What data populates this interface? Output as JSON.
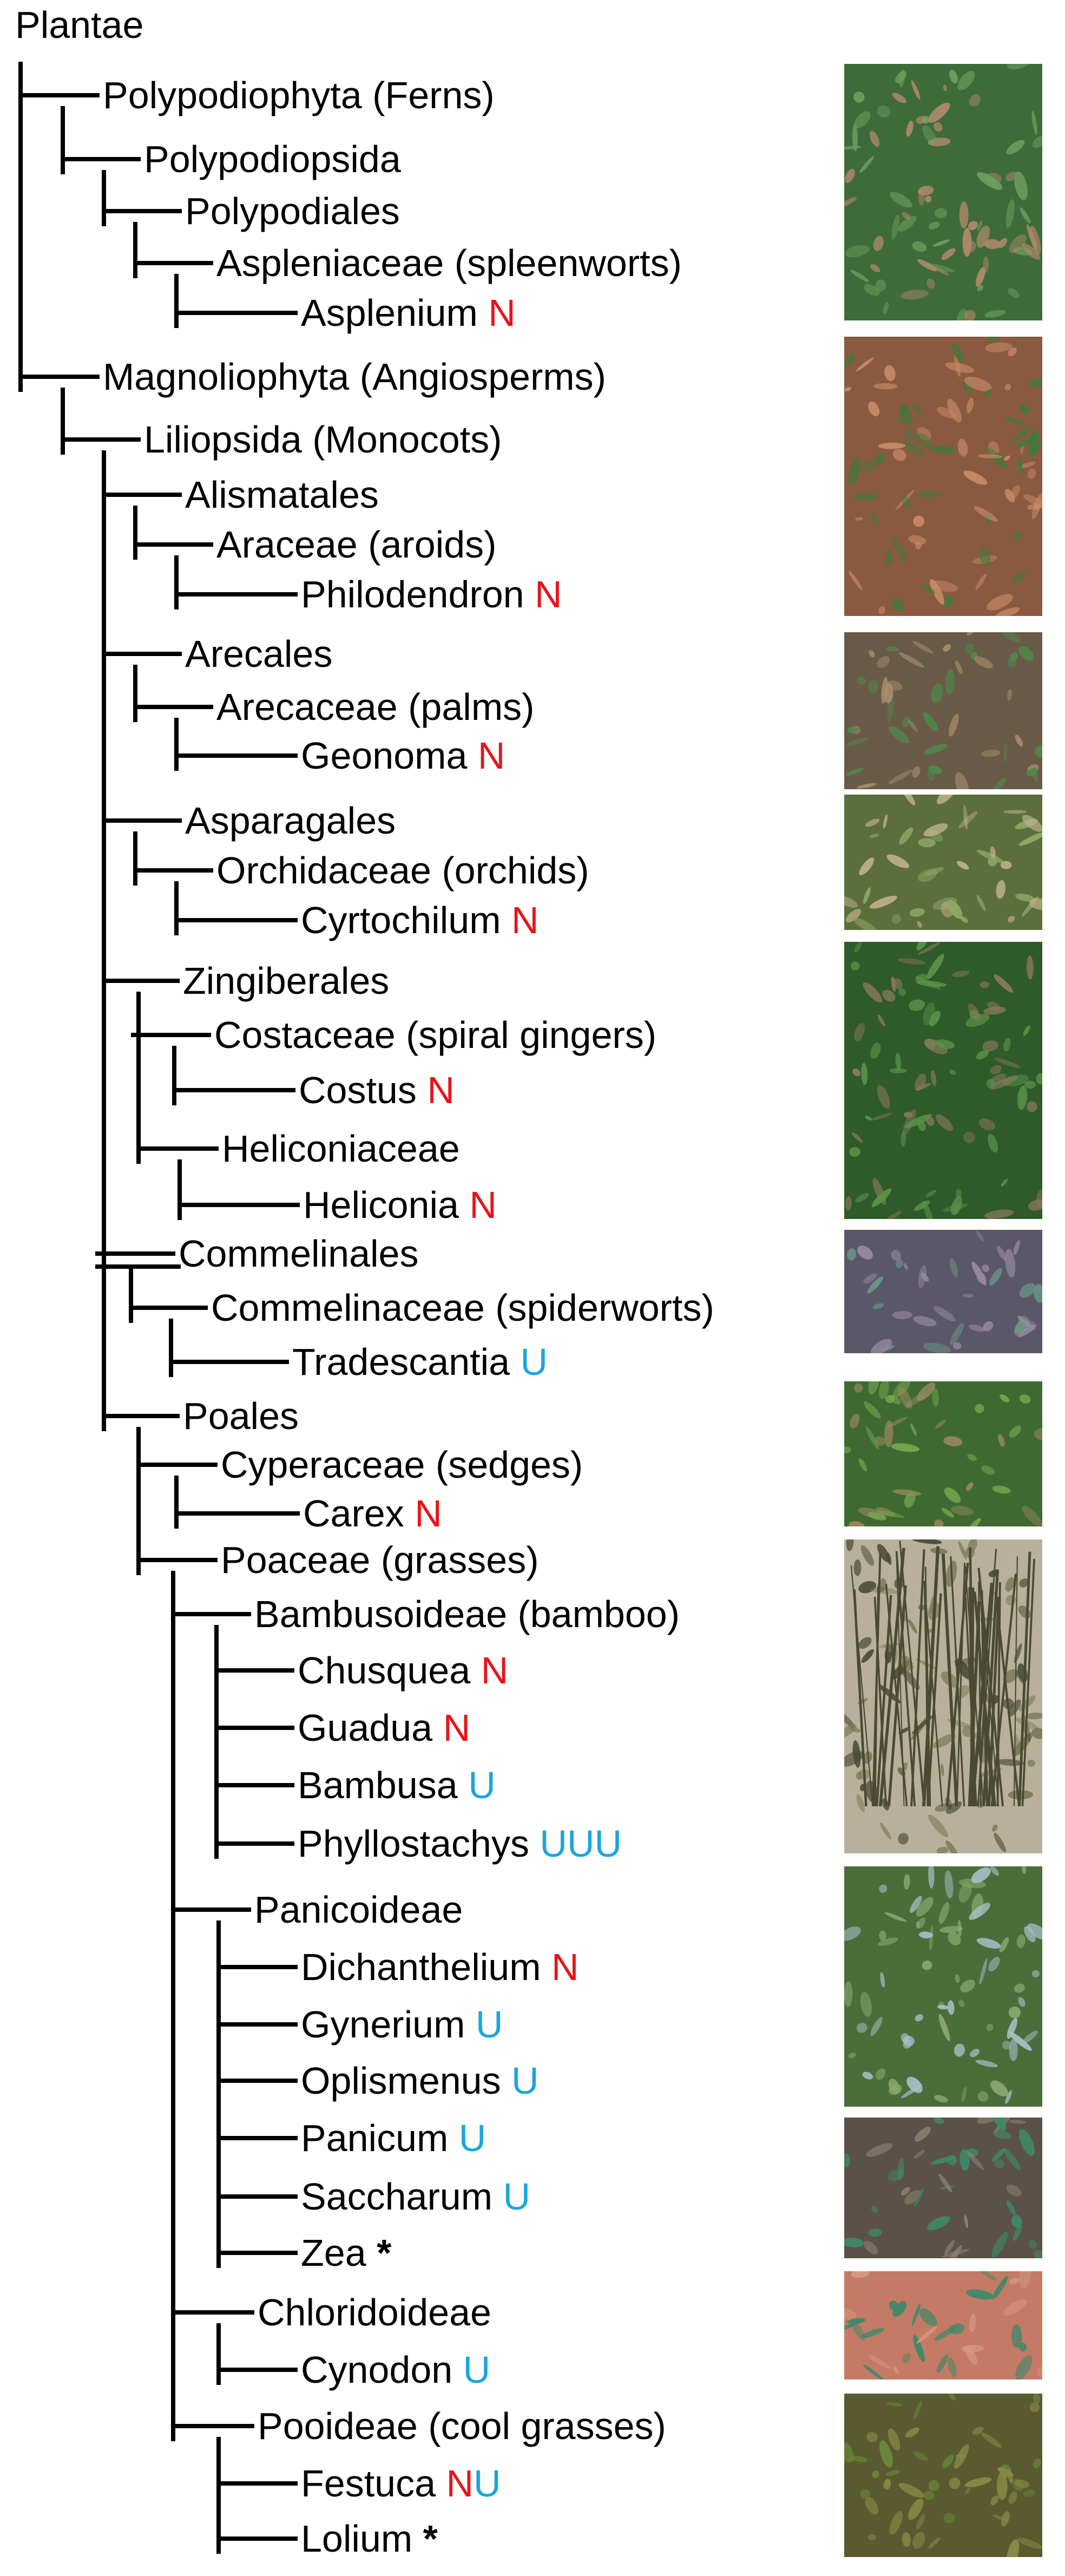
{
  "root": "Plantae",
  "tag_colors": {
    "N": "#e8141a",
    "U": "#1aa6de",
    "*": "#000000"
  },
  "nodes": [
    {
      "id": "polypodiophyta",
      "label": "Polypodiophyta (Ferns)"
    },
    {
      "id": "polypodiopsida",
      "label": "Polypodiopsida"
    },
    {
      "id": "polypodiales",
      "label": "Polypodiales"
    },
    {
      "id": "aspleniaceae",
      "label": "Aspleniaceae (spleenworts)"
    },
    {
      "id": "asplenium",
      "label": "Asplenium",
      "tag": "N"
    },
    {
      "id": "magnoliophyta",
      "label": "Magnoliophyta (Angiosperms)"
    },
    {
      "id": "liliopsida",
      "label": "Liliopsida (Monocots)"
    },
    {
      "id": "alismatales",
      "label": "Alismatales"
    },
    {
      "id": "araceae",
      "label": "Araceae (aroids)"
    },
    {
      "id": "philodendron",
      "label": "Philodendron",
      "tag": "N"
    },
    {
      "id": "arecales",
      "label": "Arecales"
    },
    {
      "id": "arecaceae",
      "label": "Arecaceae (palms)"
    },
    {
      "id": "geonoma",
      "label": "Geonoma",
      "tag": "N"
    },
    {
      "id": "asparagales",
      "label": "Asparagales"
    },
    {
      "id": "orchidaceae",
      "label": "Orchidaceae (orchids)"
    },
    {
      "id": "cyrtochilum",
      "label": "Cyrtochilum",
      "tag": "N"
    },
    {
      "id": "zingiberales",
      "label": "Zingiberales"
    },
    {
      "id": "costaceae",
      "label": "Costaceae (spiral gingers)"
    },
    {
      "id": "costus",
      "label": "Costus",
      "tag": "N"
    },
    {
      "id": "heliconiaceae",
      "label": "Heliconiaceae"
    },
    {
      "id": "heliconia",
      "label": "Heliconia",
      "tag": "N"
    },
    {
      "id": "commelinales",
      "label": "Commelinales"
    },
    {
      "id": "commelinaceae",
      "label": "Commelinaceae (spiderworts)"
    },
    {
      "id": "tradescantia",
      "label": "Tradescantia",
      "tag": "U"
    },
    {
      "id": "poales",
      "label": "Poales"
    },
    {
      "id": "cyperaceae",
      "label": "Cyperaceae (sedges)"
    },
    {
      "id": "carex",
      "label": "Carex",
      "tag": "N"
    },
    {
      "id": "poaceae",
      "label": "Poaceae (grasses)"
    },
    {
      "id": "bambusoideae",
      "label": "Bambusoideae (bamboo)"
    },
    {
      "id": "chusquea",
      "label": "Chusquea",
      "tag": "N"
    },
    {
      "id": "guadua",
      "label": "Guadua",
      "tag": "N"
    },
    {
      "id": "bambusa",
      "label": "Bambusa",
      "tag": "U"
    },
    {
      "id": "phyllostachys",
      "label": "Phyllostachys",
      "tag": "UUU"
    },
    {
      "id": "panicoideae",
      "label": "Panicoideae"
    },
    {
      "id": "dichanthelium",
      "label": "Dichanthelium",
      "tag": "N"
    },
    {
      "id": "gynerium",
      "label": "Gynerium",
      "tag": "U"
    },
    {
      "id": "oplismenus",
      "label": "Oplismenus",
      "tag": "U"
    },
    {
      "id": "panicum",
      "label": "Panicum",
      "tag": "U"
    },
    {
      "id": "saccharum",
      "label": "Saccharum",
      "tag": "U"
    },
    {
      "id": "zea",
      "label": "Zea",
      "tag": "*"
    },
    {
      "id": "chloridoideae",
      "label": "Chloridoideae"
    },
    {
      "id": "cynodon",
      "label": "Cynodon",
      "tag": "U"
    },
    {
      "id": "pooideae",
      "label": "Pooideae (cool grasses)"
    },
    {
      "id": "festuca",
      "label": "Festuca",
      "tag": "NU"
    },
    {
      "id": "lolium",
      "label": "Lolium",
      "tag": "*"
    }
  ],
  "photos": [
    {
      "subject": "asplenium-fern",
      "palette": [
        "#3f6b3a",
        "#6fa060",
        "#b08a6a"
      ]
    },
    {
      "subject": "philodendron-leaf-litter",
      "palette": [
        "#8a5a40",
        "#c98b6a",
        "#3f7a3a"
      ]
    },
    {
      "subject": "geonoma-palm",
      "palette": [
        "#6a5a48",
        "#a8906e",
        "#4f8a4a"
      ]
    },
    {
      "subject": "cyrtochilum-orchid",
      "palette": [
        "#5c6e3c",
        "#8fa868",
        "#c0b48a"
      ]
    },
    {
      "subject": "costus-heliconia",
      "palette": [
        "#2f5a2a",
        "#5c9448",
        "#8c7a60"
      ]
    },
    {
      "subject": "tradescantia-spiderwort",
      "palette": [
        "#5a5868",
        "#9a8aa0",
        "#6a9a88"
      ]
    },
    {
      "subject": "carex-sedge",
      "palette": [
        "#3e6a32",
        "#78a850",
        "#9a8a60"
      ]
    },
    {
      "subject": "bamboo-clump",
      "palette": [
        "#b8b09a",
        "#7a7a58",
        "#4a4a34"
      ]
    },
    {
      "subject": "panicoideae-grass",
      "palette": [
        "#4a6e3a",
        "#8aa870",
        "#a8c0c8"
      ]
    },
    {
      "subject": "saccharum-zea",
      "palette": [
        "#5a5248",
        "#9a8a7a",
        "#3f8a6a"
      ]
    },
    {
      "subject": "cynodon-red-soil",
      "palette": [
        "#c47a64",
        "#d89a82",
        "#3a8a6a"
      ]
    },
    {
      "subject": "pooideae-grass",
      "palette": [
        "#5a5a30",
        "#8a8a48",
        "#6a8a3a"
      ]
    }
  ]
}
